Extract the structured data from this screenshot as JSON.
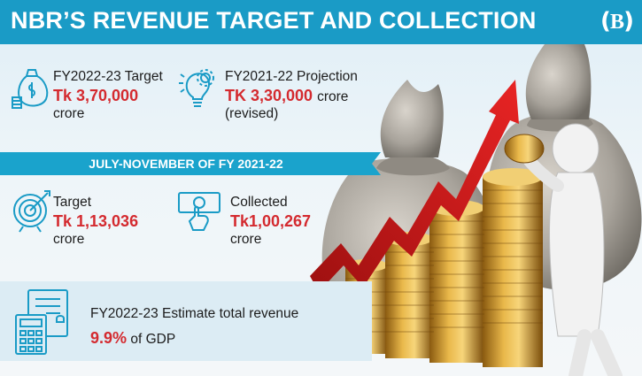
{
  "header": {
    "title": "NBR’S REVENUE TARGET AND COLLECTION",
    "logo_letter": "B"
  },
  "fy_target": {
    "label": "FY2022-23 Target",
    "value": "Tk 3,70,000",
    "unit": "crore"
  },
  "fy_projection": {
    "label": "FY2021-22 Projection",
    "value": "TK 3,30,000",
    "unit_inline": "crore",
    "note": "(revised)"
  },
  "period_band": {
    "text": "JULY-NOVEMBER OF FY 2021-22"
  },
  "period_target": {
    "label": "Target",
    "value": "Tk 1,13,036",
    "unit": "crore"
  },
  "period_collected": {
    "label": "Collected",
    "value": "Tk1,00,267",
    "unit": "crore"
  },
  "estimate": {
    "label": "FY2022-23 Estimate total revenue",
    "percent": "9.9%",
    "suffix": " of GDP"
  },
  "colors": {
    "header": "#1a9bc6",
    "accent_red": "#d42a2f",
    "icon_blue": "#1a9bc6"
  }
}
